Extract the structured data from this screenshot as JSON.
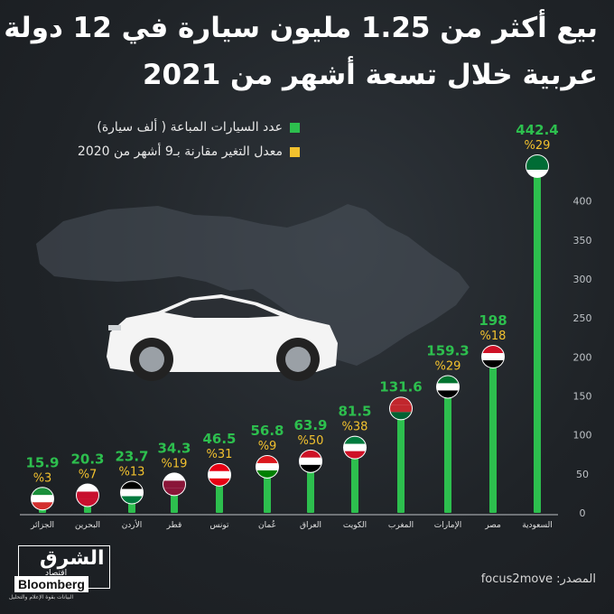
{
  "title": {
    "line1": "بيع أكثر من 1.25 مليون سيارة في 12 دولة",
    "line2": "عربية خلال تسعة أشهر من 2021"
  },
  "legend": [
    {
      "label": "عدد السيارات المباعة ( ألف سيارة)",
      "color": "#2dbf4e"
    },
    {
      "label": "معدل التغير مقارنة بـ9 أشهر من 2020",
      "color": "#f2c12e"
    }
  ],
  "source": "المصدر: focus2move",
  "logo": {
    "name": "الشرق",
    "sub": "اقتصاد",
    "with": "مع",
    "partner": "Bloomberg",
    "tagline": "البيانات بقوة الإعلام والتحليل"
  },
  "colors": {
    "bar": "#2dbf4e",
    "value": "#2dbf4e",
    "change": "#f2c12e",
    "axis": "#bfc3c7",
    "background": "#1f2327"
  },
  "chart_data": {
    "type": "bar",
    "categories": [
      "الجزائر",
      "البحرين",
      "الأردن",
      "قطر",
      "تونس",
      "عُمان",
      "العراق",
      "الكويت",
      "المغرب",
      "الإمارات",
      "مصر",
      "السعودية"
    ],
    "flags": [
      "algeria-flag-icon",
      "bahrain-flag-icon",
      "jordan-flag-icon",
      "qatar-flag-icon",
      "tunisia-flag-icon",
      "oman-flag-icon",
      "iraq-flag-icon",
      "kuwait-flag-icon",
      "morocco-flag-icon",
      "uae-flag-icon",
      "egypt-flag-icon",
      "saudi-flag-icon"
    ],
    "series": [
      {
        "name": "عدد السيارات المباعة ( ألف سيارة)",
        "values": [
          15.9,
          20.3,
          23.7,
          34.3,
          46.5,
          56.8,
          63.9,
          81.5,
          131.6,
          159.3,
          198,
          442.4
        ]
      },
      {
        "name": "معدل التغير مقارنة بـ9 أشهر من 2020",
        "values": [
          "%3",
          "%7",
          "%13",
          "%19",
          "%31",
          "%9",
          "%50",
          "%38",
          "",
          "%29",
          "%18",
          "%29"
        ]
      }
    ],
    "value_labels": [
      "15.9",
      "20.3",
      "23.7",
      "34.3",
      "46.5",
      "56.8",
      "63.9",
      "81.5",
      "131.6",
      "159.3",
      "198",
      "442.4"
    ],
    "yticks": [
      "0",
      "50",
      "100",
      "150",
      "200",
      "250",
      "300",
      "350",
      "400"
    ],
    "ylim": [
      0,
      442.4
    ],
    "axis_position": "right",
    "grid": false
  }
}
